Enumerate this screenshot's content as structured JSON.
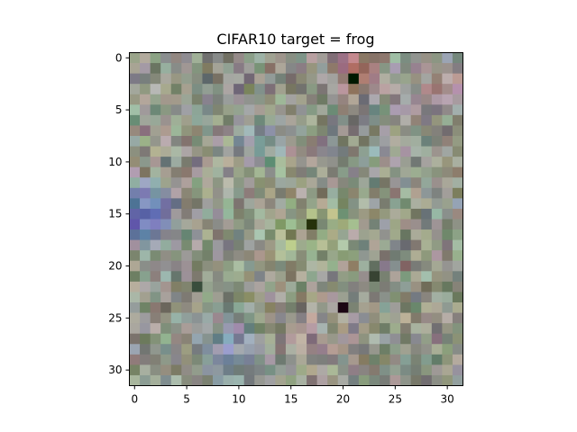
{
  "title": "CIFAR10 target = frog",
  "image": {
    "rows": 32,
    "cols": 32,
    "description_colors": {
      "background": "#8f9388",
      "center_green": "#9fb07c",
      "dark_spot": "#1f2a16",
      "left_blue": "#5a6fd8",
      "top_red": "#c8707e",
      "right_pink": "#b08690",
      "lower_blue": "#6e84c8"
    }
  },
  "x_ticks": [
    "0",
    "5",
    "10",
    "15",
    "20",
    "25",
    "30"
  ],
  "y_ticks": [
    "0",
    "5",
    "10",
    "15",
    "20",
    "25",
    "30"
  ]
}
